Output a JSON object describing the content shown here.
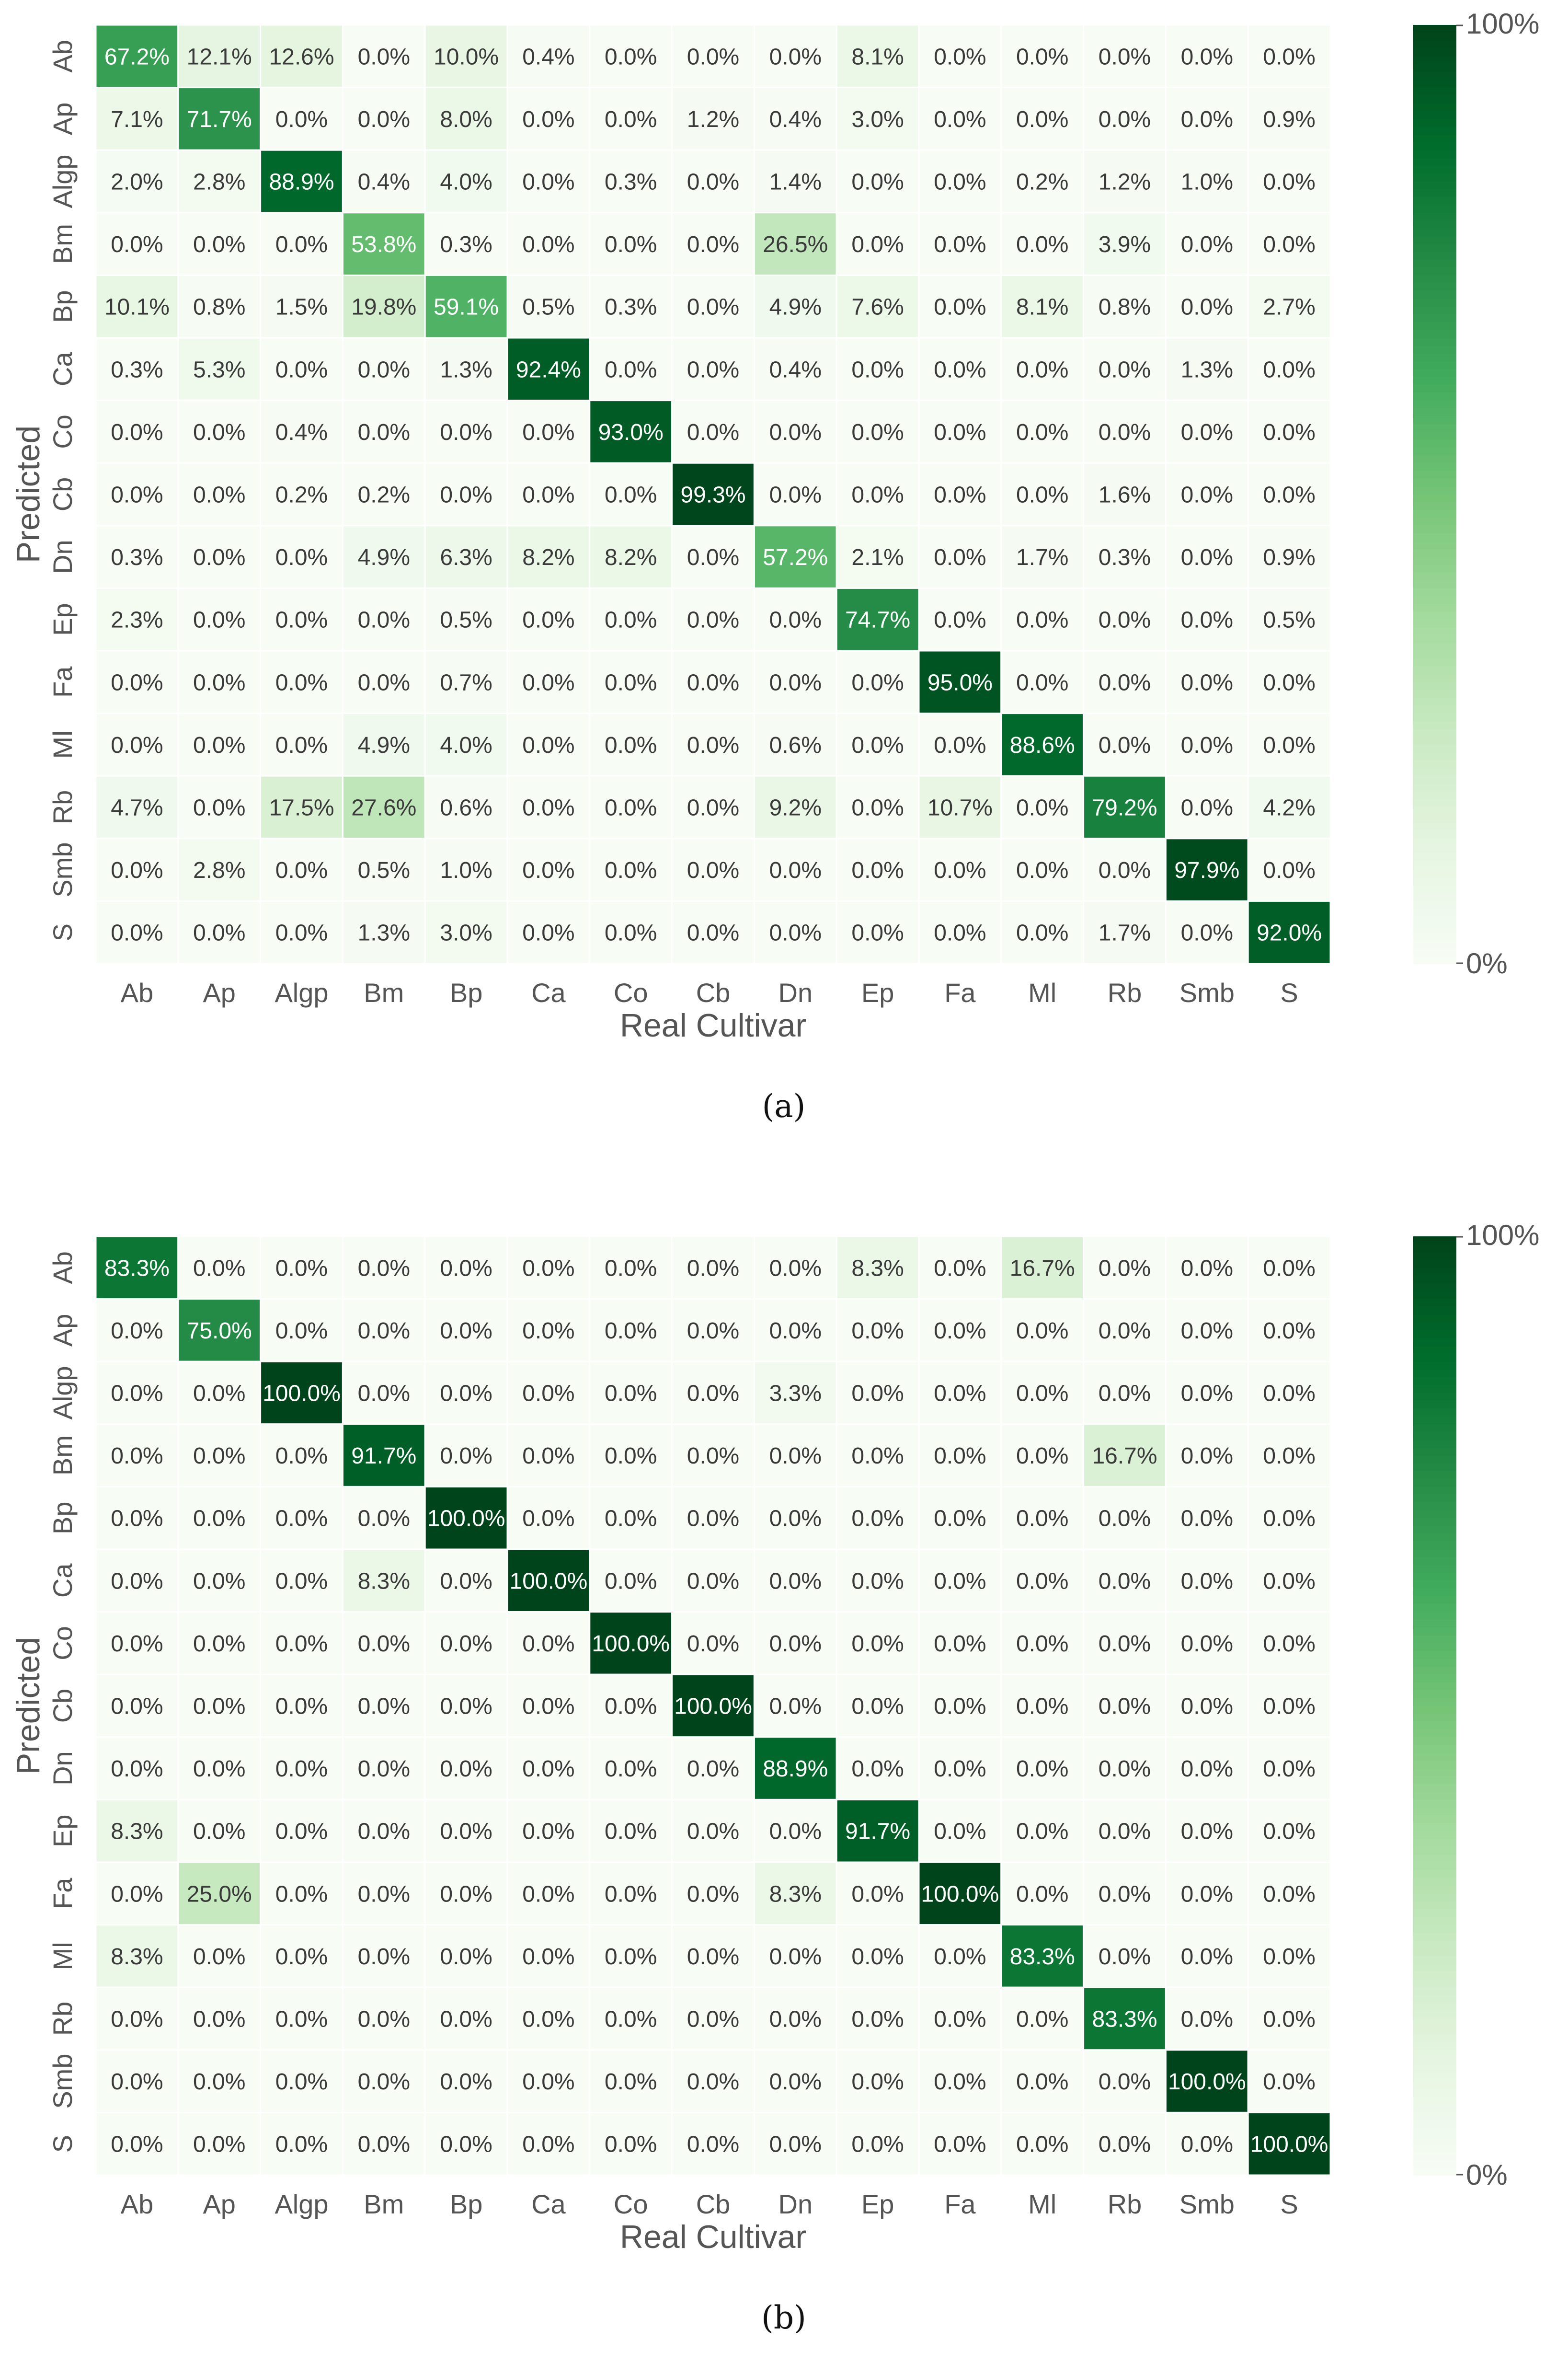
{
  "colors": {
    "cmap": [
      "#f7fcf5",
      "#e5f5e0",
      "#c7e9c0",
      "#a1d99b",
      "#74c476",
      "#41ab5d",
      "#238b45",
      "#006d2c",
      "#00441b"
    ],
    "grid": "#ffffff",
    "axis_text": "#555555",
    "light_cell_text": "#3a3a3a",
    "dark_cell_text": "#ffffff"
  },
  "chart_data": [
    {
      "type": "heatmap",
      "caption": "(a)",
      "xlabel": "Real Cultivar",
      "ylabel": "Predicted",
      "x_categories": [
        "Ab",
        "Ap",
        "Algp",
        "Bm",
        "Bp",
        "Ca",
        "Co",
        "Cb",
        "Dn",
        "Ep",
        "Fa",
        "Ml",
        "Rb",
        "Smb",
        "S"
      ],
      "y_categories": [
        "Ab",
        "Ap",
        "Algp",
        "Bm",
        "Bp",
        "Ca",
        "Co",
        "Cb",
        "Dn",
        "Ep",
        "Fa",
        "Ml",
        "Rb",
        "Smb",
        "S"
      ],
      "colorbar": {
        "min_label": "0%",
        "max_label": "100%",
        "range": [
          0,
          100
        ]
      },
      "values": [
        [
          67.2,
          12.1,
          12.6,
          0.0,
          10.0,
          0.4,
          0.0,
          0.0,
          0.0,
          8.1,
          0.0,
          0.0,
          0.0,
          0.0,
          0.0
        ],
        [
          7.1,
          71.7,
          0.0,
          0.0,
          8.0,
          0.0,
          0.0,
          1.2,
          0.4,
          3.0,
          0.0,
          0.0,
          0.0,
          0.0,
          0.9
        ],
        [
          2.0,
          2.8,
          88.9,
          0.4,
          4.0,
          0.0,
          0.3,
          0.0,
          1.4,
          0.0,
          0.0,
          0.2,
          1.2,
          1.0,
          0.0
        ],
        [
          0.0,
          0.0,
          0.0,
          53.8,
          0.3,
          0.0,
          0.0,
          0.0,
          26.5,
          0.0,
          0.0,
          0.0,
          3.9,
          0.0,
          0.0
        ],
        [
          10.1,
          0.8,
          1.5,
          19.8,
          59.1,
          0.5,
          0.3,
          0.0,
          4.9,
          7.6,
          0.0,
          8.1,
          0.8,
          0.0,
          2.7
        ],
        [
          0.3,
          5.3,
          0.0,
          0.0,
          1.3,
          92.4,
          0.0,
          0.0,
          0.4,
          0.0,
          0.0,
          0.0,
          0.0,
          1.3,
          0.0
        ],
        [
          0.0,
          0.0,
          0.4,
          0.0,
          0.0,
          0.0,
          93.0,
          0.0,
          0.0,
          0.0,
          0.0,
          0.0,
          0.0,
          0.0,
          0.0
        ],
        [
          0.0,
          0.0,
          0.2,
          0.2,
          0.0,
          0.0,
          0.0,
          99.3,
          0.0,
          0.0,
          0.0,
          0.0,
          1.6,
          0.0,
          0.0
        ],
        [
          0.3,
          0.0,
          0.0,
          4.9,
          6.3,
          8.2,
          8.2,
          0.0,
          57.2,
          2.1,
          0.0,
          1.7,
          0.3,
          0.0,
          0.9
        ],
        [
          2.3,
          0.0,
          0.0,
          0.0,
          0.5,
          0.0,
          0.0,
          0.0,
          0.0,
          74.7,
          0.0,
          0.0,
          0.0,
          0.0,
          0.5
        ],
        [
          0.0,
          0.0,
          0.0,
          0.0,
          0.7,
          0.0,
          0.0,
          0.0,
          0.0,
          0.0,
          95.0,
          0.0,
          0.0,
          0.0,
          0.0
        ],
        [
          0.0,
          0.0,
          0.0,
          4.9,
          4.0,
          0.0,
          0.0,
          0.0,
          0.6,
          0.0,
          0.0,
          88.6,
          0.0,
          0.0,
          0.0
        ],
        [
          4.7,
          0.0,
          17.5,
          27.6,
          0.6,
          0.0,
          0.0,
          0.0,
          9.2,
          0.0,
          10.7,
          0.0,
          79.2,
          0.0,
          4.2
        ],
        [
          0.0,
          2.8,
          0.0,
          0.5,
          1.0,
          0.0,
          0.0,
          0.0,
          0.0,
          0.0,
          0.0,
          0.0,
          0.0,
          97.9,
          0.0
        ],
        [
          0.0,
          0.0,
          0.0,
          1.3,
          3.0,
          0.0,
          0.0,
          0.0,
          0.0,
          0.0,
          0.0,
          0.0,
          1.7,
          0.0,
          92.0
        ]
      ]
    },
    {
      "type": "heatmap",
      "caption": "(b)",
      "xlabel": "Real Cultivar",
      "ylabel": "Predicted",
      "x_categories": [
        "Ab",
        "Ap",
        "Algp",
        "Bm",
        "Bp",
        "Ca",
        "Co",
        "Cb",
        "Dn",
        "Ep",
        "Fa",
        "Ml",
        "Rb",
        "Smb",
        "S"
      ],
      "y_categories": [
        "Ab",
        "Ap",
        "Algp",
        "Bm",
        "Bp",
        "Ca",
        "Co",
        "Cb",
        "Dn",
        "Ep",
        "Fa",
        "Ml",
        "Rb",
        "Smb",
        "S"
      ],
      "colorbar": {
        "min_label": "0%",
        "max_label": "100%",
        "range": [
          0,
          100
        ]
      },
      "values": [
        [
          83.3,
          0.0,
          0.0,
          0.0,
          0.0,
          0.0,
          0.0,
          0.0,
          0.0,
          8.3,
          0.0,
          16.7,
          0.0,
          0.0,
          0.0
        ],
        [
          0.0,
          75.0,
          0.0,
          0.0,
          0.0,
          0.0,
          0.0,
          0.0,
          0.0,
          0.0,
          0.0,
          0.0,
          0.0,
          0.0,
          0.0
        ],
        [
          0.0,
          0.0,
          100.0,
          0.0,
          0.0,
          0.0,
          0.0,
          0.0,
          3.3,
          0.0,
          0.0,
          0.0,
          0.0,
          0.0,
          0.0
        ],
        [
          0.0,
          0.0,
          0.0,
          91.7,
          0.0,
          0.0,
          0.0,
          0.0,
          0.0,
          0.0,
          0.0,
          0.0,
          16.7,
          0.0,
          0.0
        ],
        [
          0.0,
          0.0,
          0.0,
          0.0,
          100.0,
          0.0,
          0.0,
          0.0,
          0.0,
          0.0,
          0.0,
          0.0,
          0.0,
          0.0,
          0.0
        ],
        [
          0.0,
          0.0,
          0.0,
          8.3,
          0.0,
          100.0,
          0.0,
          0.0,
          0.0,
          0.0,
          0.0,
          0.0,
          0.0,
          0.0,
          0.0
        ],
        [
          0.0,
          0.0,
          0.0,
          0.0,
          0.0,
          0.0,
          100.0,
          0.0,
          0.0,
          0.0,
          0.0,
          0.0,
          0.0,
          0.0,
          0.0
        ],
        [
          0.0,
          0.0,
          0.0,
          0.0,
          0.0,
          0.0,
          0.0,
          100.0,
          0.0,
          0.0,
          0.0,
          0.0,
          0.0,
          0.0,
          0.0
        ],
        [
          0.0,
          0.0,
          0.0,
          0.0,
          0.0,
          0.0,
          0.0,
          0.0,
          88.9,
          0.0,
          0.0,
          0.0,
          0.0,
          0.0,
          0.0
        ],
        [
          8.3,
          0.0,
          0.0,
          0.0,
          0.0,
          0.0,
          0.0,
          0.0,
          0.0,
          91.7,
          0.0,
          0.0,
          0.0,
          0.0,
          0.0
        ],
        [
          0.0,
          25.0,
          0.0,
          0.0,
          0.0,
          0.0,
          0.0,
          0.0,
          8.3,
          0.0,
          100.0,
          0.0,
          0.0,
          0.0,
          0.0
        ],
        [
          8.3,
          0.0,
          0.0,
          0.0,
          0.0,
          0.0,
          0.0,
          0.0,
          0.0,
          0.0,
          0.0,
          83.3,
          0.0,
          0.0,
          0.0
        ],
        [
          0.0,
          0.0,
          0.0,
          0.0,
          0.0,
          0.0,
          0.0,
          0.0,
          0.0,
          0.0,
          0.0,
          0.0,
          83.3,
          0.0,
          0.0
        ],
        [
          0.0,
          0.0,
          0.0,
          0.0,
          0.0,
          0.0,
          0.0,
          0.0,
          0.0,
          0.0,
          0.0,
          0.0,
          0.0,
          100.0,
          0.0
        ],
        [
          0.0,
          0.0,
          0.0,
          0.0,
          0.0,
          0.0,
          0.0,
          0.0,
          0.0,
          0.0,
          0.0,
          0.0,
          0.0,
          0.0,
          100.0
        ]
      ]
    }
  ]
}
